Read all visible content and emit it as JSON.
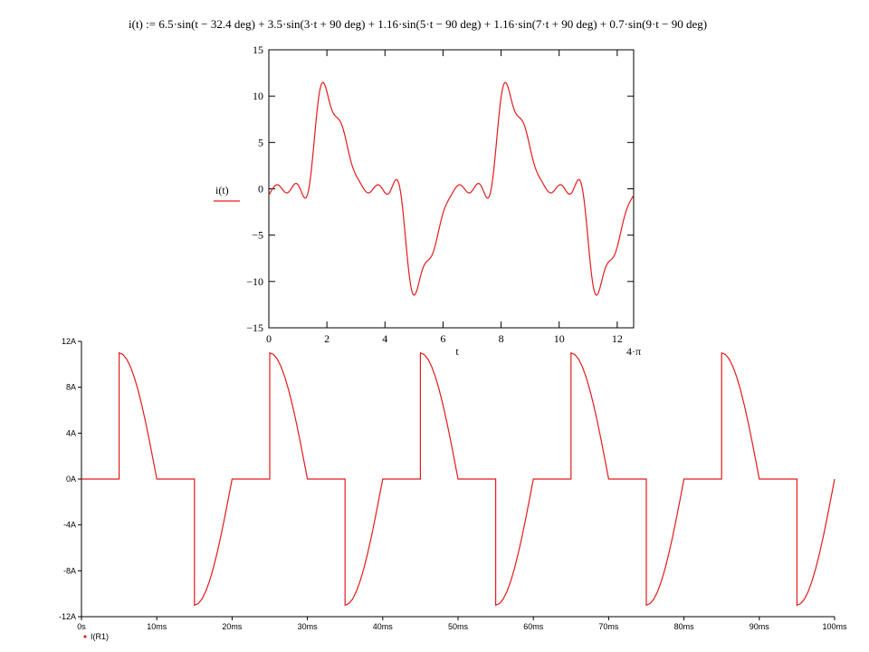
{
  "colors": {
    "trace": "#e31b1b",
    "axis": "#000000",
    "background": "#ffffff"
  },
  "chart_data": [
    {
      "type": "line",
      "title": "i(t) := 6.5·sin(t − 32.4 deg) + 3.5·sin(3·t + 90 deg) + 1.16·sin(5·t − 90 deg) + 1.16·sin(7·t + 90 deg) + 0.7·sin(9·t − 90 deg)",
      "xlabel": "t",
      "x_end_label": "4·π",
      "ylabel": "i(t)",
      "xlim": [
        0,
        12.566
      ],
      "ylim": [
        -15,
        15
      ],
      "x_ticks": [
        "0",
        "2",
        "4",
        "6",
        "8",
        "10",
        "12"
      ],
      "y_ticks": [
        "15",
        "10",
        "5",
        "0",
        "−5",
        "−10",
        "−15"
      ],
      "series": [
        {
          "harmonics": [
            {
              "amplitude": 6.5,
              "order": 1,
              "phase_deg": -32.4
            },
            {
              "amplitude": 3.5,
              "order": 3,
              "phase_deg": 90
            },
            {
              "amplitude": 1.16,
              "order": 5,
              "phase_deg": -90
            },
            {
              "amplitude": 1.16,
              "order": 7,
              "phase_deg": 90
            },
            {
              "amplitude": 0.7,
              "order": 9,
              "phase_deg": -90
            }
          ]
        }
      ],
      "grid": false
    },
    {
      "type": "line",
      "xlim": [
        0,
        100
      ],
      "ylim": [
        -12,
        12
      ],
      "x_unit": "ms",
      "x_ticks": [
        "0s",
        "10ms",
        "20ms",
        "30ms",
        "40ms",
        "50ms",
        "60ms",
        "70ms",
        "80ms",
        "90ms",
        "100ms"
      ],
      "y_ticks": [
        "12A",
        "8A",
        "4A",
        "0A",
        "-4A",
        "-8A",
        "-12A"
      ],
      "legend": "bottom-left",
      "series": [
        {
          "name": "I(R1)",
          "x": [
            0,
            5,
            5,
            5.5,
            6,
            6.5,
            7,
            7.5,
            8,
            8.5,
            9,
            9.5,
            10,
            10,
            15,
            15,
            15.5,
            16,
            16.5,
            17,
            17.5,
            18,
            18.5,
            19,
            19.5,
            20,
            20,
            25,
            25,
            25.5,
            26,
            26.5,
            27,
            27.5,
            28,
            28.5,
            29,
            29.5,
            30,
            30,
            35,
            35,
            35.5,
            36,
            36.5,
            37,
            37.5,
            38,
            38.5,
            39,
            39.5,
            40,
            40,
            45,
            45,
            45.5,
            46,
            46.5,
            47,
            47.5,
            48,
            48.5,
            49,
            49.5,
            50,
            50,
            55,
            55,
            55.5,
            56,
            56.5,
            57,
            57.5,
            58,
            58.5,
            59,
            59.5,
            60,
            60,
            65,
            65,
            65.5,
            66,
            66.5,
            67,
            67.5,
            68,
            68.5,
            69,
            69.5,
            70,
            70,
            75,
            75,
            75.5,
            76,
            76.5,
            77,
            77.5,
            78,
            78.5,
            79,
            79.5,
            80,
            80,
            85,
            85,
            85.5,
            86,
            86.5,
            87,
            87.5,
            88,
            88.5,
            89,
            89.5,
            90,
            90,
            95,
            95,
            95.5,
            96,
            96.5,
            97,
            97.5,
            98,
            98.5,
            99,
            99.5,
            100
          ],
          "y": [
            0,
            0,
            11,
            10.86,
            10.46,
            9.8,
            8.9,
            7.78,
            6.47,
            5.0,
            3.4,
            1.72,
            0,
            0,
            0,
            -11,
            -10.86,
            -10.46,
            -9.8,
            -8.9,
            -7.78,
            -6.47,
            -5.0,
            -3.4,
            -1.72,
            0,
            0,
            0,
            11,
            10.86,
            10.46,
            9.8,
            8.9,
            7.78,
            6.47,
            5.0,
            3.4,
            1.72,
            0,
            0,
            0,
            -11,
            -10.86,
            -10.46,
            -9.8,
            -8.9,
            -7.78,
            -6.47,
            -5.0,
            -3.4,
            -1.72,
            0,
            0,
            0,
            11,
            10.86,
            10.46,
            9.8,
            8.9,
            7.78,
            6.47,
            5.0,
            3.4,
            1.72,
            0,
            0,
            0,
            -11,
            -10.86,
            -10.46,
            -9.8,
            -8.9,
            -7.78,
            -6.47,
            -5.0,
            -3.4,
            -1.72,
            0,
            0,
            0,
            11,
            10.86,
            10.46,
            9.8,
            8.9,
            7.78,
            6.47,
            5.0,
            3.4,
            1.72,
            0,
            0,
            0,
            -11,
            -10.86,
            -10.46,
            -9.8,
            -8.9,
            -7.78,
            -6.47,
            -5.0,
            -3.4,
            -1.72,
            0,
            0,
            0,
            11,
            10.86,
            10.46,
            9.8,
            8.9,
            7.78,
            6.47,
            5.0,
            3.4,
            1.72,
            0,
            0,
            0,
            -11,
            -10.86,
            -10.46,
            -9.8,
            -8.9,
            -7.78,
            -6.47,
            -5.0,
            -3.4,
            -1.72,
            0
          ]
        }
      ],
      "grid": false
    }
  ]
}
